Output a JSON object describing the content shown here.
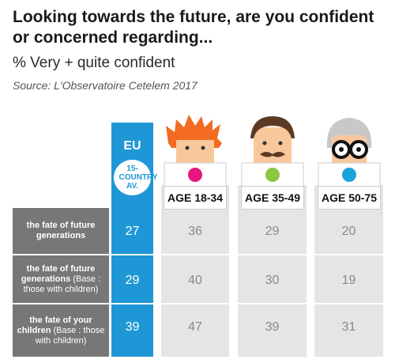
{
  "header": {
    "title": "Looking towards the future, are you confident or concerned regarding...",
    "subtitle": "% Very + quite confident",
    "source": "Source: L'Observatoire Cetelem 2017"
  },
  "columns": {
    "eu": {
      "label": "EU",
      "badge": "15-COUNTRY AV."
    },
    "groups": [
      "AGE 18-34",
      "AGE 35-49",
      "AGE 50-75"
    ]
  },
  "rows": [
    {
      "label": "the fate of future generations",
      "note": ""
    },
    {
      "label": "the fate of future generations",
      "note": "(Base : those with children)"
    },
    {
      "label": "the fate of your children",
      "note": "(Base : those with children)"
    }
  ],
  "chart_data": {
    "type": "table",
    "title": "Looking towards the future, are you confident or concerned regarding...",
    "subtitle": "% Very + quite confident",
    "columns": [
      "EU 15-COUNTRY AV.",
      "AGE 18-34",
      "AGE 35-49",
      "AGE 50-75"
    ],
    "rows": [
      {
        "label": "the fate of future generations",
        "values": [
          27,
          36,
          29,
          20
        ]
      },
      {
        "label": "the fate of future generations (Base : those with children)",
        "values": [
          29,
          40,
          30,
          19
        ]
      },
      {
        "label": "the fate of your children (Base : those with children)",
        "values": [
          39,
          47,
          39,
          31
        ]
      }
    ]
  },
  "colors": {
    "eu": "#1f97d6",
    "row_label_bg": "#777777",
    "group_bg": "#e5e5e5",
    "dot_18_34": "#e5177e",
    "dot_35_49": "#8cc63f",
    "dot_50_75": "#1ba3dc",
    "hair_18_34": "#f26b21"
  },
  "icons": [
    "young-person-icon",
    "middle-aged-person-icon",
    "senior-person-icon"
  ]
}
